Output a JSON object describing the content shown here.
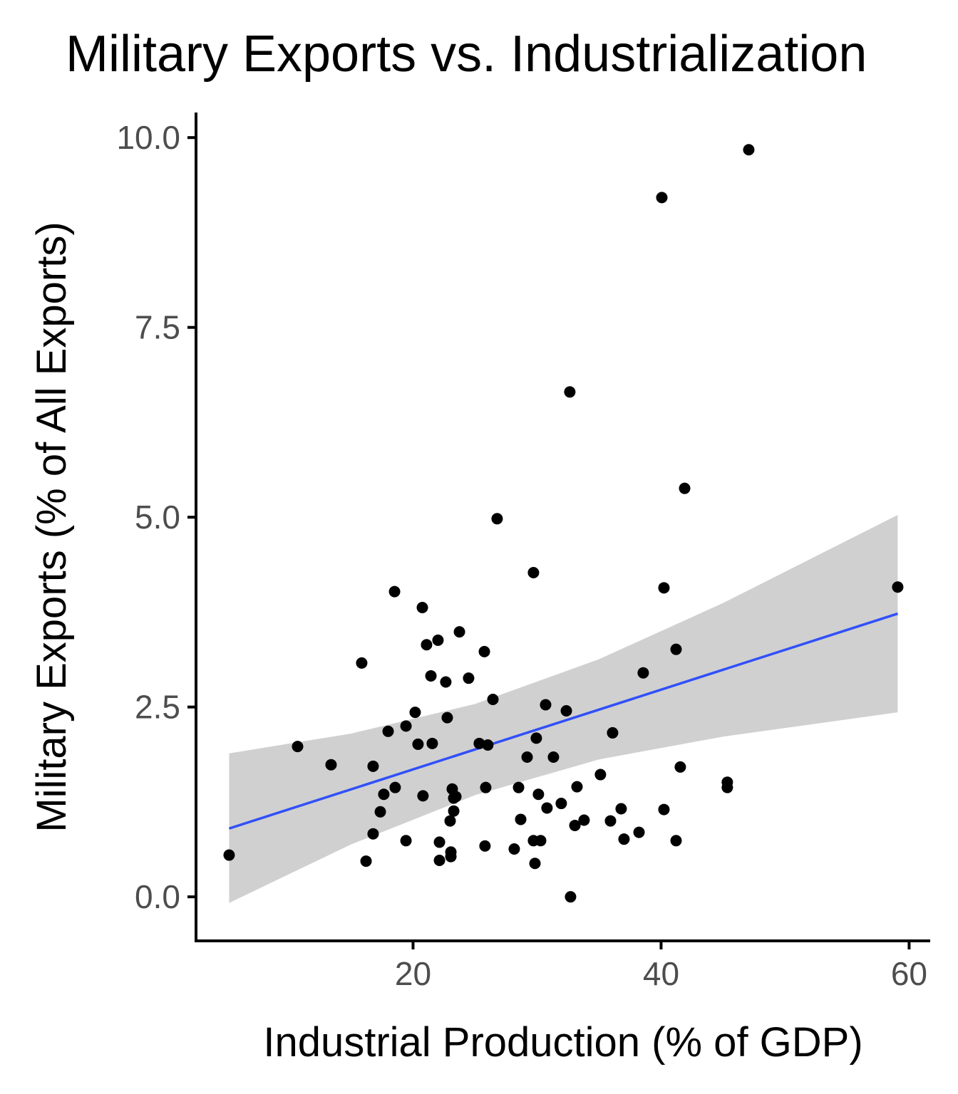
{
  "chart_data": {
    "type": "scatter",
    "title": "Military Exports vs. Industrialization",
    "xlabel": "Industrial Production (% of GDP)",
    "ylabel": "Military Exports (% of All Exports)",
    "xlim": [
      2.5,
      61.7
    ],
    "ylim": [
      -0.58,
      10.33
    ],
    "xticks": [
      20,
      40,
      60
    ],
    "xtick_labels": [
      "20",
      "40",
      "60"
    ],
    "yticks": [
      0,
      2.5,
      5,
      7.5,
      10
    ],
    "ytick_labels": [
      "0.0",
      "2.5",
      "5.0",
      "7.5",
      "10.0"
    ],
    "grid": false,
    "points": [
      [
        5.17,
        0.55
      ],
      [
        10.69,
        1.98
      ],
      [
        13.39,
        1.74
      ],
      [
        15.86,
        3.08
      ],
      [
        16.21,
        0.47
      ],
      [
        16.78,
        1.72
      ],
      [
        16.78,
        0.83
      ],
      [
        17.36,
        1.12
      ],
      [
        17.64,
        1.35
      ],
      [
        17.99,
        2.18
      ],
      [
        18.51,
        4.02
      ],
      [
        18.56,
        1.44
      ],
      [
        19.43,
        0.74
      ],
      [
        19.43,
        2.25
      ],
      [
        20.17,
        2.43
      ],
      [
        20.4,
        2.01
      ],
      [
        20.75,
        3.81
      ],
      [
        20.8,
        1.33
      ],
      [
        21.09,
        3.32
      ],
      [
        21.44,
        2.91
      ],
      [
        21.55,
        2.02
      ],
      [
        22.01,
        3.38
      ],
      [
        22.13,
        0.72
      ],
      [
        22.13,
        0.48
      ],
      [
        22.64,
        2.83
      ],
      [
        22.76,
        2.36
      ],
      [
        22.99,
        1.0
      ],
      [
        23.05,
        0.59
      ],
      [
        23.05,
        0.53
      ],
      [
        23.16,
        1.42
      ],
      [
        23.28,
        1.13
      ],
      [
        23.28,
        1.3
      ],
      [
        23.45,
        1.32
      ],
      [
        23.74,
        3.49
      ],
      [
        24.48,
        2.88
      ],
      [
        25.34,
        2.02
      ],
      [
        25.75,
        3.23
      ],
      [
        25.86,
        1.44
      ],
      [
        25.8,
        0.67
      ],
      [
        26.03,
        2.0
      ],
      [
        26.44,
        2.6
      ],
      [
        26.78,
        4.98
      ],
      [
        28.16,
        0.63
      ],
      [
        28.51,
        1.44
      ],
      [
        28.68,
        1.02
      ],
      [
        29.2,
        1.84
      ],
      [
        29.71,
        4.27
      ],
      [
        29.71,
        0.74
      ],
      [
        29.83,
        0.44
      ],
      [
        29.94,
        2.09
      ],
      [
        30.11,
        1.35
      ],
      [
        30.29,
        0.74
      ],
      [
        30.69,
        2.53
      ],
      [
        30.8,
        1.17
      ],
      [
        31.32,
        1.84
      ],
      [
        31.95,
        1.23
      ],
      [
        32.36,
        2.45
      ],
      [
        32.64,
        6.65
      ],
      [
        32.7,
        0.0
      ],
      [
        33.05,
        0.94
      ],
      [
        33.22,
        1.45
      ],
      [
        33.79,
        1.01
      ],
      [
        35.11,
        1.61
      ],
      [
        35.92,
        1.0
      ],
      [
        36.09,
        2.16
      ],
      [
        36.78,
        1.16
      ],
      [
        37.01,
        0.76
      ],
      [
        38.22,
        0.85
      ],
      [
        38.56,
        2.95
      ],
      [
        40.06,
        9.21
      ],
      [
        40.23,
        4.07
      ],
      [
        40.23,
        1.15
      ],
      [
        41.21,
        3.26
      ],
      [
        41.21,
        0.74
      ],
      [
        41.55,
        1.71
      ],
      [
        41.9,
        5.38
      ],
      [
        45.34,
        1.51
      ],
      [
        45.34,
        1.44
      ],
      [
        47.07,
        9.84
      ],
      [
        59.08,
        4.08
      ]
    ],
    "fit": {
      "method": "linear",
      "x": [
        5.17,
        59.08
      ],
      "y": [
        0.9,
        3.73
      ],
      "ribbon_x": [
        5.17,
        15,
        25,
        35,
        45,
        59.08
      ],
      "ribbon_lower": [
        -0.08,
        0.69,
        1.34,
        1.81,
        2.11,
        2.43
      ],
      "ribbon_upper": [
        1.89,
        2.15,
        2.54,
        3.13,
        3.87,
        5.03
      ]
    },
    "colors": {
      "points": "#000000",
      "line": "#3050f8",
      "ribbon": "#d0d0d0",
      "axis": "#000000",
      "tick_text": "#4d4d4d"
    }
  }
}
